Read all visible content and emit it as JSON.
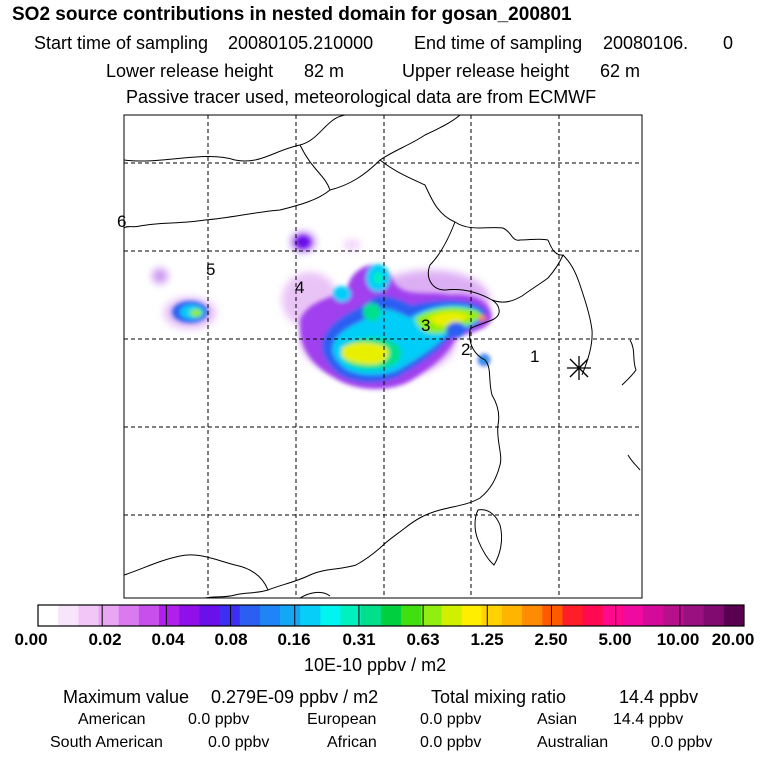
{
  "title": "SO2 source contributions in nested domain for gosan_200801",
  "sampling": {
    "start_label": "Start time of sampling",
    "start_value": "20080105.210000",
    "end_label": "End time of sampling",
    "end_value": "20080106.",
    "end_extra": "0"
  },
  "release": {
    "lower_label": "Lower release height",
    "lower_value": "82 m",
    "upper_label": "Upper release height",
    "upper_value": "62 m"
  },
  "note": "Passive tracer used, meteorological data are from ECMWF",
  "map": {
    "source_markers": [
      "1",
      "2",
      "3",
      "4",
      "5",
      "6"
    ],
    "receptor_icon": "asterisk-icon",
    "grid": "dashed"
  },
  "colorbar": {
    "colors": [
      "#ffffff",
      "#f9e5fb",
      "#f2c6f7",
      "#e9a6f3",
      "#d97aef",
      "#c94fec",
      "#b020ea",
      "#9010ea",
      "#6a10ea",
      "#3d2ef4",
      "#2b5ef2",
      "#1f84f5",
      "#12a8f6",
      "#06cef8",
      "#00f5f0",
      "#00f0c0",
      "#00e08c",
      "#00d040",
      "#40e010",
      "#90ee10",
      "#d0f000",
      "#ffee00",
      "#ffd200",
      "#ffb400",
      "#ff8c00",
      "#ff5a00",
      "#ff1e28",
      "#ff0a50",
      "#ff0a8c",
      "#f00aa0",
      "#d40a9a",
      "#b8108c",
      "#9a1080",
      "#800a70",
      "#5a0050"
    ],
    "labels": [
      "0.00",
      "0.02",
      "0.04",
      "0.08",
      "0.16",
      "0.31",
      "0.63",
      "1.25",
      "2.50",
      "5.00",
      "10.00",
      "20.00"
    ],
    "unit": "10E-10 ppbv / m2"
  },
  "stats": {
    "max_label": "Maximum value",
    "max_value": "0.279E-09 ppbv / m2",
    "total_label": "Total mixing ratio",
    "total_value": "14.4 ppbv",
    "regions": [
      {
        "name": "American",
        "value": "0.0 ppbv"
      },
      {
        "name": "European",
        "value": "0.0 ppbv"
      },
      {
        "name": "Asian",
        "value": "14.4 ppbv"
      },
      {
        "name": "South American",
        "value": "0.0 ppbv"
      },
      {
        "name": "African",
        "value": "0.0 ppbv"
      },
      {
        "name": "Australian",
        "value": "0.0 ppbv"
      }
    ]
  }
}
